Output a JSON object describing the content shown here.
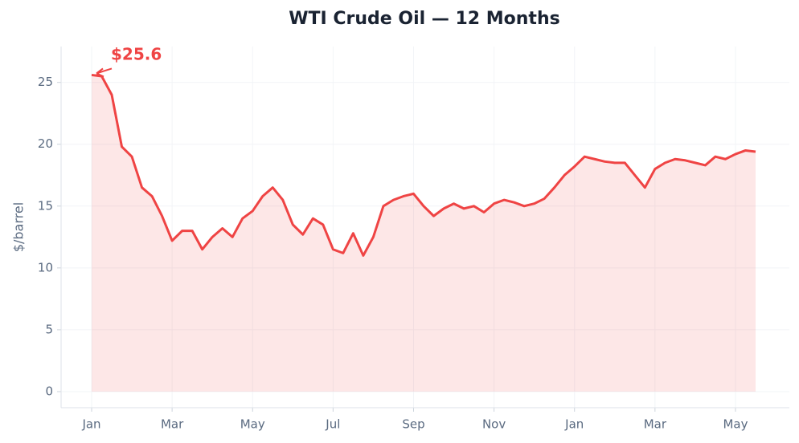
{
  "chart_data": {
    "type": "line",
    "title": "WTI Crude Oil — 12 Months",
    "ylabel": "$/barrel",
    "annotation": "$25.6",
    "categories": [
      "Jan",
      null,
      null,
      null,
      null,
      null,
      null,
      null,
      "Mar",
      null,
      null,
      null,
      null,
      null,
      null,
      null,
      "May",
      null,
      null,
      null,
      null,
      null,
      null,
      null,
      "Jul",
      null,
      null,
      null,
      null,
      null,
      null,
      null,
      "Sep",
      null,
      null,
      null,
      null,
      null,
      null,
      null,
      "Nov",
      null,
      null,
      null,
      null,
      null,
      null,
      null,
      "Jan",
      null,
      null,
      null,
      null,
      null,
      null,
      null,
      "Mar",
      null,
      null,
      null,
      null,
      null,
      null,
      null,
      "May",
      null,
      null
    ],
    "series": [
      {
        "name": "WTI",
        "color": "#ef4444",
        "values": [
          25.6,
          25.5,
          24,
          19.8,
          19.0,
          16.5,
          15.8,
          14.2,
          12.2,
          13.0,
          13.0,
          11.5,
          12.5,
          13.2,
          12.5,
          14.0,
          14.6,
          15.8,
          16.5,
          15.5,
          13.5,
          12.7,
          14.0,
          13.5,
          11.5,
          11.2,
          12.8,
          11.0,
          12.5,
          15.0,
          15.5,
          15.8,
          16.0,
          15.0,
          14.2,
          14.8,
          15.2,
          14.8,
          15.0,
          14.5,
          15.2,
          15.5,
          15.3,
          15.0,
          15.2,
          15.6,
          16.5,
          17.5,
          18.2,
          19.0,
          18.8,
          18.6,
          18.5,
          18.5,
          17.5,
          16.5,
          18.0,
          18.5,
          18.8,
          18.7,
          18.5,
          18.3,
          19.0,
          18.8,
          19.2,
          19.5,
          19.4
        ]
      }
    ],
    "ylim": [
      -1.3,
      27.9
    ],
    "yticks": [
      0,
      5,
      10,
      15,
      20,
      25
    ],
    "grid": true,
    "area": true
  }
}
